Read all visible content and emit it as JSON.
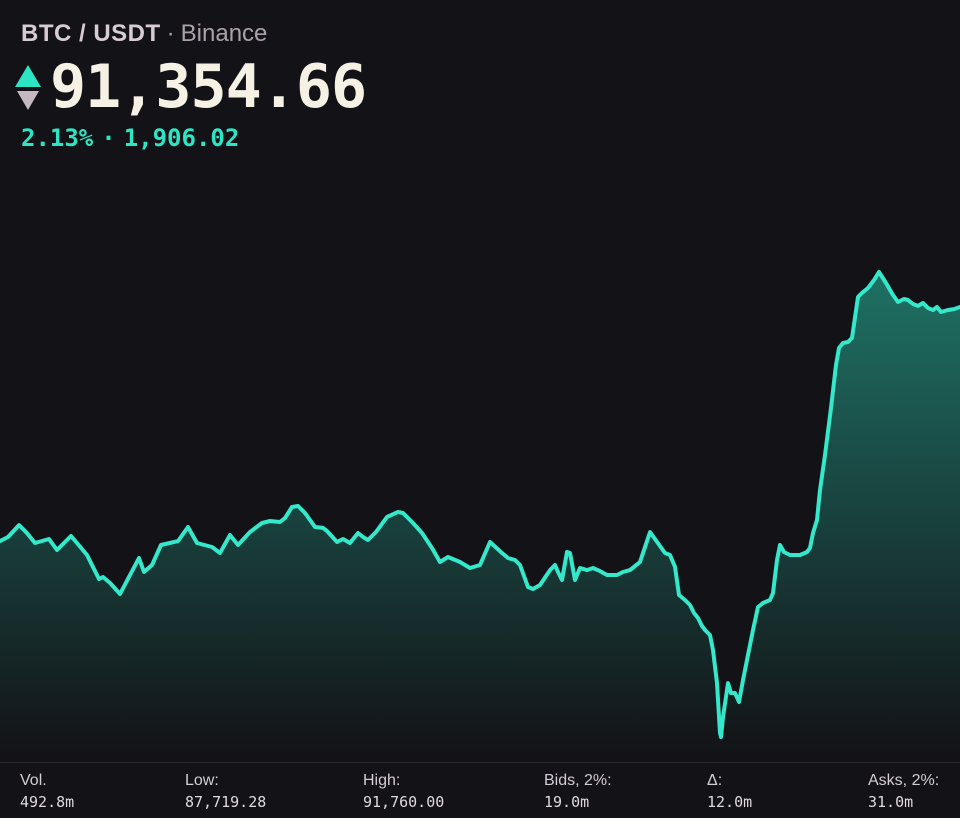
{
  "header": {
    "pair": "BTC / USDT",
    "separator": "·",
    "exchange": "Binance",
    "price": "91,354.66",
    "change_percent": "2.13%",
    "change_separator": "·",
    "change_absolute": "1,906.02"
  },
  "icons": {
    "up_arrow": "triangle-up",
    "down_arrow": "triangle-down"
  },
  "colors": {
    "background": "#131216",
    "border": "#2a292e",
    "line": "#34e9cb",
    "accent": "#2ce5c4",
    "price_text": "#f5f1e4",
    "pair_text": "#d7ccd4",
    "exchange_text": "#a9a2aa",
    "down_arrow": "#c2b9c1",
    "label_text": "#d3cdd5",
    "value_text": "#dfdae0"
  },
  "stats": [
    {
      "label": "Vol.",
      "value": "492.8m"
    },
    {
      "label": "Low:",
      "value": "87,719.28"
    },
    {
      "label": "High:",
      "value": "91,760.00"
    },
    {
      "label": "Bids, 2%:",
      "value": "19.0m"
    },
    {
      "label": "Δ:",
      "value": "12.0m"
    },
    {
      "label": "Asks, 2%:",
      "value": "31.0m"
    }
  ],
  "chart_data": {
    "type": "area",
    "title": "BTC/USDT price, Binance",
    "legend": false,
    "grid": false,
    "x_unit": "px (no time axis shown)",
    "ylim": [
      87719.28,
      91760.0
    ],
    "low": 87719.28,
    "high": 91760.0,
    "last_price": 91354.66,
    "change_percent": 2.13,
    "change_absolute": 1906.02,
    "points": [
      [
        0,
        89422
      ],
      [
        8,
        89457
      ],
      [
        19,
        89561
      ],
      [
        27,
        89491
      ],
      [
        35,
        89405
      ],
      [
        49,
        89440
      ],
      [
        57,
        89344
      ],
      [
        71,
        89466
      ],
      [
        77,
        89405
      ],
      [
        87,
        89301
      ],
      [
        99,
        89092
      ],
      [
        103,
        89110
      ],
      [
        110,
        89058
      ],
      [
        120,
        88962
      ],
      [
        139,
        89275
      ],
      [
        144,
        89153
      ],
      [
        152,
        89214
      ],
      [
        161,
        89388
      ],
      [
        178,
        89422
      ],
      [
        188,
        89544
      ],
      [
        197,
        89405
      ],
      [
        212,
        89370
      ],
      [
        220,
        89318
      ],
      [
        230,
        89475
      ],
      [
        238,
        89388
      ],
      [
        250,
        89501
      ],
      [
        262,
        89579
      ],
      [
        270,
        89596
      ],
      [
        280,
        89588
      ],
      [
        285,
        89622
      ],
      [
        292,
        89718
      ],
      [
        298,
        89727
      ],
      [
        305,
        89666
      ],
      [
        315,
        89544
      ],
      [
        323,
        89536
      ],
      [
        327,
        89509
      ],
      [
        337,
        89414
      ],
      [
        343,
        89440
      ],
      [
        350,
        89405
      ],
      [
        358,
        89492
      ],
      [
        363,
        89457
      ],
      [
        368,
        89431
      ],
      [
        376,
        89501
      ],
      [
        387,
        89631
      ],
      [
        398,
        89675
      ],
      [
        403,
        89666
      ],
      [
        413,
        89579
      ],
      [
        422,
        89492
      ],
      [
        432,
        89362
      ],
      [
        440,
        89240
      ],
      [
        448,
        89283
      ],
      [
        460,
        89240
      ],
      [
        470,
        89188
      ],
      [
        480,
        89214
      ],
      [
        490,
        89414
      ],
      [
        502,
        89318
      ],
      [
        508,
        89275
      ],
      [
        515,
        89257
      ],
      [
        520,
        89214
      ],
      [
        528,
        89023
      ],
      [
        533,
        89005
      ],
      [
        540,
        89040
      ],
      [
        550,
        89170
      ],
      [
        555,
        89214
      ],
      [
        558,
        89153
      ],
      [
        562,
        89084
      ],
      [
        567,
        89327
      ],
      [
        570,
        89318
      ],
      [
        575,
        89084
      ],
      [
        580,
        89188
      ],
      [
        587,
        89170
      ],
      [
        593,
        89188
      ],
      [
        600,
        89161
      ],
      [
        607,
        89127
      ],
      [
        617,
        89127
      ],
      [
        623,
        89153
      ],
      [
        630,
        89170
      ],
      [
        640,
        89240
      ],
      [
        650,
        89500
      ],
      [
        665,
        89318
      ],
      [
        670,
        89301
      ],
      [
        675,
        89197
      ],
      [
        679,
        88953
      ],
      [
        685,
        88910
      ],
      [
        690,
        88866
      ],
      [
        694,
        88797
      ],
      [
        698,
        88753
      ],
      [
        702,
        88684
      ],
      [
        705,
        88649
      ],
      [
        710,
        88606
      ],
      [
        713,
        88475
      ],
      [
        717,
        88188
      ],
      [
        720,
        87754
      ],
      [
        721,
        87719
      ],
      [
        723,
        87893
      ],
      [
        726,
        88067
      ],
      [
        728,
        88188
      ],
      [
        731,
        88102
      ],
      [
        735,
        88102
      ],
      [
        739,
        88023
      ],
      [
        743,
        88214
      ],
      [
        748,
        88432
      ],
      [
        753,
        88649
      ],
      [
        758,
        88849
      ],
      [
        763,
        88884
      ],
      [
        770,
        88910
      ],
      [
        773,
        88971
      ],
      [
        777,
        89257
      ],
      [
        780,
        89388
      ],
      [
        784,
        89327
      ],
      [
        790,
        89301
      ],
      [
        800,
        89301
      ],
      [
        807,
        89327
      ],
      [
        810,
        89362
      ],
      [
        813,
        89492
      ],
      [
        817,
        89605
      ],
      [
        820,
        89866
      ],
      [
        825,
        90170
      ],
      [
        831,
        90578
      ],
      [
        836,
        90952
      ],
      [
        839,
        91100
      ],
      [
        843,
        91143
      ],
      [
        848,
        91152
      ],
      [
        852,
        91187
      ],
      [
        858,
        91543
      ],
      [
        862,
        91578
      ],
      [
        868,
        91621
      ],
      [
        874,
        91690
      ],
      [
        879,
        91760
      ],
      [
        886,
        91664
      ],
      [
        893,
        91560
      ],
      [
        898,
        91499
      ],
      [
        904,
        91525
      ],
      [
        908,
        91517
      ],
      [
        913,
        91482
      ],
      [
        918,
        91465
      ],
      [
        923,
        91491
      ],
      [
        928,
        91447
      ],
      [
        933,
        91430
      ],
      [
        937,
        91456
      ],
      [
        941,
        91412
      ],
      [
        948,
        91430
      ],
      [
        954,
        91438
      ],
      [
        960,
        91456
      ]
    ]
  }
}
